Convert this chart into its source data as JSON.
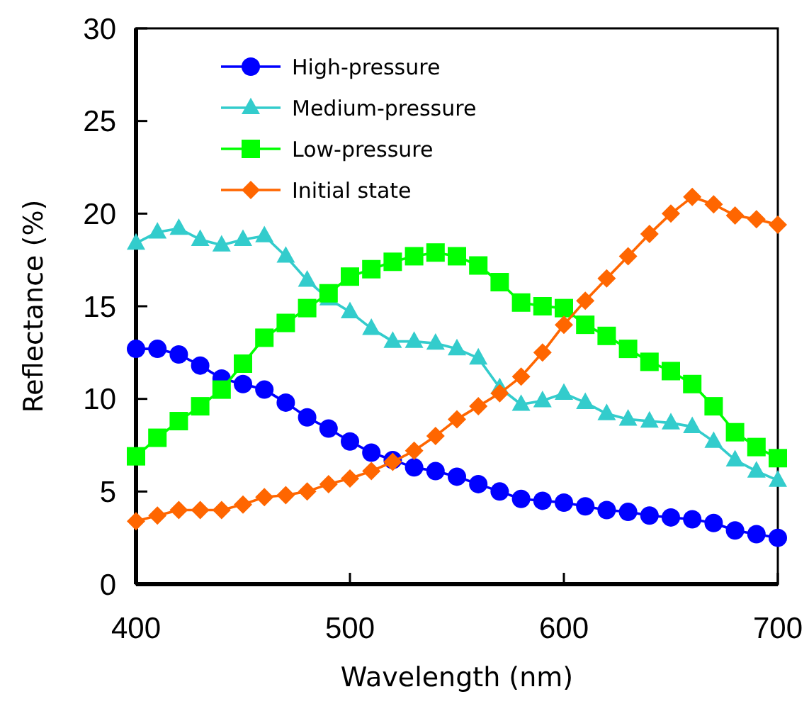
{
  "chart_data": {
    "type": "line",
    "xlabel": "Wavelength (nm)",
    "ylabel": "Reflectance (%)",
    "x": [
      400,
      410,
      420,
      430,
      440,
      450,
      460,
      470,
      480,
      490,
      500,
      510,
      520,
      530,
      540,
      550,
      560,
      570,
      580,
      590,
      600,
      610,
      620,
      630,
      640,
      650,
      660,
      670,
      680,
      690,
      700
    ],
    "xlim": [
      400,
      700
    ],
    "xticks": [
      400,
      500,
      600,
      700
    ],
    "ylim": [
      0,
      30
    ],
    "yticks": [
      0,
      5,
      10,
      15,
      20,
      25,
      30
    ],
    "grid": false,
    "legend": "top left",
    "series": [
      {
        "name": "High-pressure",
        "color": "#0000ff",
        "marker": "circle",
        "values": [
          12.7,
          12.7,
          12.4,
          11.8,
          11.1,
          10.8,
          10.5,
          9.8,
          9.0,
          8.4,
          7.7,
          7.1,
          6.7,
          6.3,
          6.1,
          5.8,
          5.4,
          5.0,
          4.6,
          4.5,
          4.4,
          4.2,
          4.0,
          3.9,
          3.7,
          3.6,
          3.5,
          3.3,
          2.9,
          2.7,
          2.5
        ]
      },
      {
        "name": "Medium-pressure",
        "color": "#33cccc",
        "marker": "triangle",
        "values": [
          18.4,
          19.0,
          19.2,
          18.6,
          18.3,
          18.6,
          18.8,
          17.7,
          16.4,
          15.4,
          14.7,
          13.8,
          13.1,
          13.1,
          13.0,
          12.7,
          12.2,
          10.6,
          9.7,
          9.9,
          10.3,
          9.8,
          9.2,
          8.9,
          8.8,
          8.7,
          8.5,
          7.7,
          6.7,
          6.1,
          5.6
        ]
      },
      {
        "name": "Low-pressure",
        "color": "#00ff00",
        "marker": "square",
        "values": [
          6.9,
          7.9,
          8.8,
          9.6,
          10.5,
          11.9,
          13.3,
          14.1,
          14.9,
          15.7,
          16.6,
          17.0,
          17.4,
          17.7,
          17.9,
          17.7,
          17.2,
          16.3,
          15.2,
          15.0,
          14.9,
          14.0,
          13.4,
          12.7,
          12.0,
          11.5,
          10.8,
          9.6,
          8.2,
          7.4,
          6.8
        ]
      },
      {
        "name": "Initial state",
        "color": "#ff6600",
        "marker": "diamond",
        "values": [
          3.4,
          3.7,
          4.0,
          4.0,
          4.0,
          4.3,
          4.7,
          4.8,
          5.0,
          5.4,
          5.7,
          6.1,
          6.6,
          7.2,
          8.0,
          8.9,
          9.6,
          10.3,
          11.2,
          12.5,
          14.0,
          15.3,
          16.5,
          17.7,
          18.9,
          20.0,
          20.9,
          20.5,
          19.9,
          19.7,
          19.4
        ]
      }
    ]
  }
}
